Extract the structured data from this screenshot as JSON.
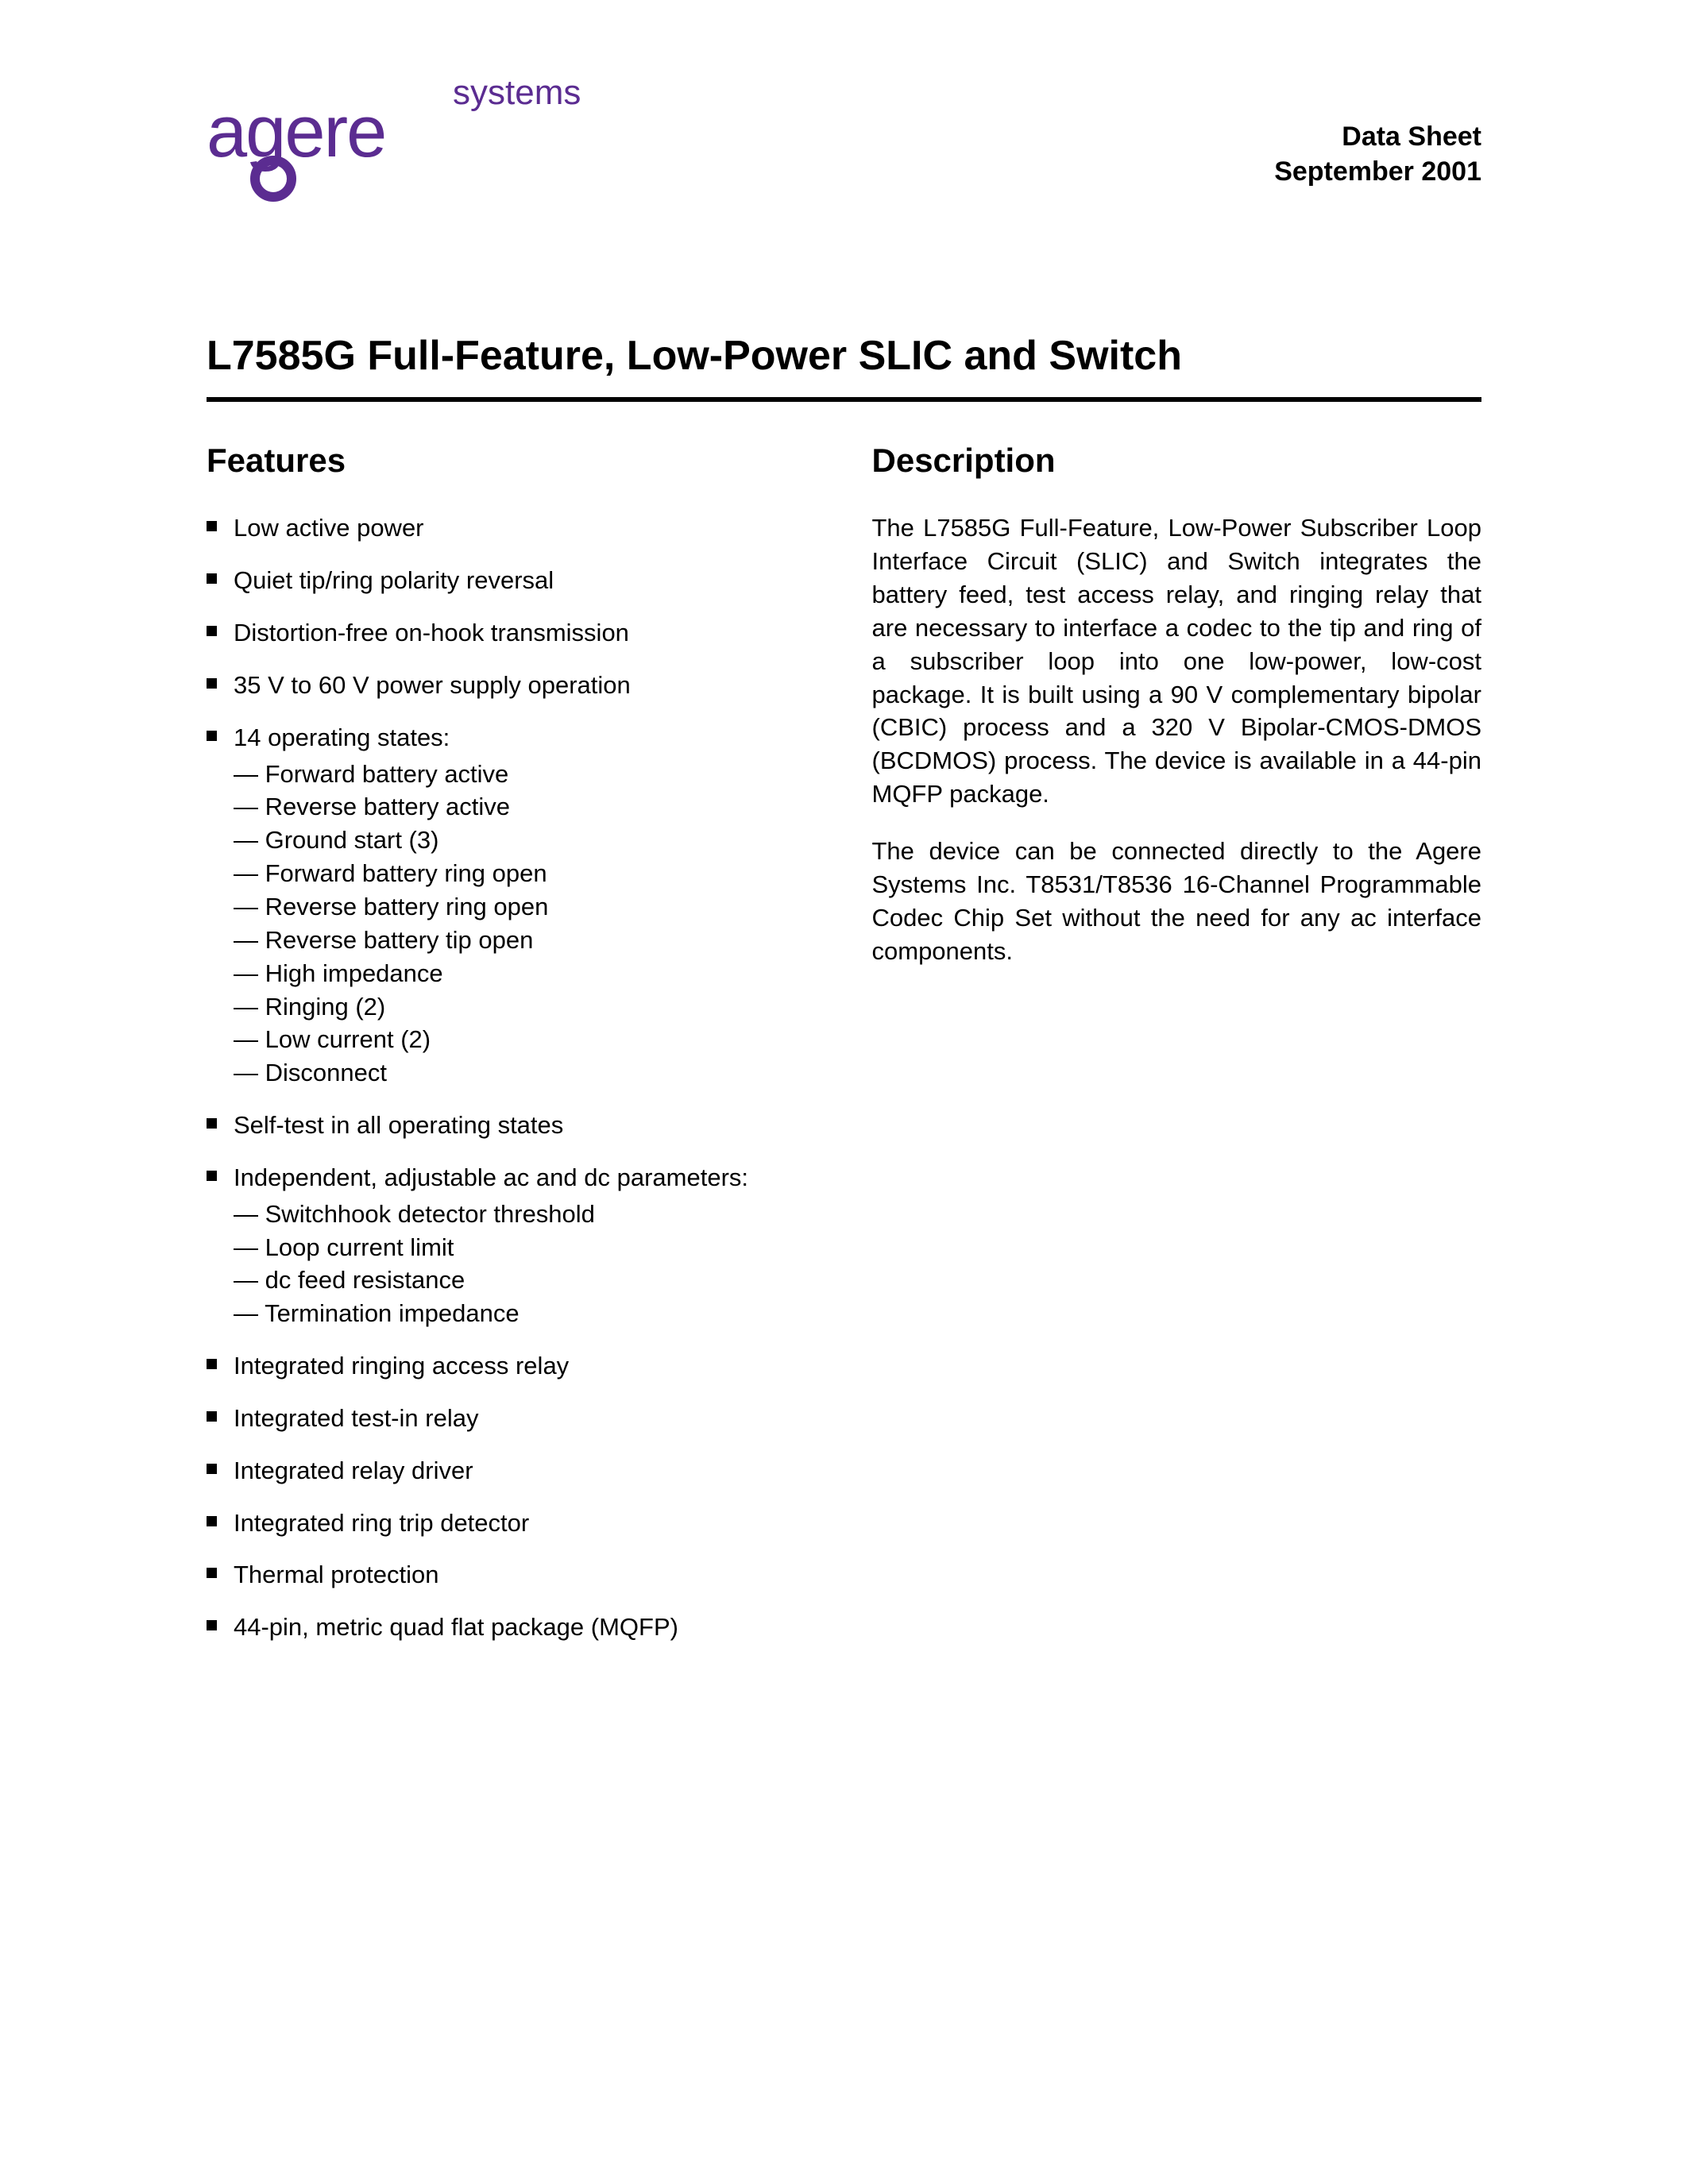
{
  "logo": {
    "word": "agere",
    "superscript": "systems"
  },
  "header": {
    "doc_type": "Data Sheet",
    "date": "September 2001"
  },
  "title": "L7585G Full-Feature, Low-Power SLIC and Switch",
  "features": {
    "heading": "Features",
    "items": [
      {
        "text": "Low active power"
      },
      {
        "text": "Quiet tip/ring polarity reversal"
      },
      {
        "text": "Distortion-free on-hook transmission"
      },
      {
        "text": "35 V to 60 V power supply operation"
      },
      {
        "text": "14 operating states:",
        "sub": [
          "Forward battery active",
          "Reverse battery active",
          "Ground start (3)",
          "Forward battery ring open",
          "Reverse battery ring open",
          "Reverse battery tip open",
          "High impedance",
          "Ringing (2)",
          "Low current (2)",
          "Disconnect"
        ]
      },
      {
        "text": "Self-test in all operating states"
      },
      {
        "text": "Independent, adjustable ac and dc parameters:",
        "sub": [
          "Switchhook detector threshold",
          "Loop current limit",
          "dc feed resistance",
          "Termination impedance"
        ]
      },
      {
        "text": "Integrated ringing access relay"
      },
      {
        "text": "Integrated test-in relay"
      },
      {
        "text": "Integrated relay driver"
      },
      {
        "text": "Integrated ring trip detector"
      },
      {
        "text": "Thermal protection"
      },
      {
        "text": "44-pin, metric quad flat package (MQFP)"
      }
    ]
  },
  "description": {
    "heading": "Description",
    "paragraphs": [
      "The L7585G Full-Feature, Low-Power Subscriber Loop Interface Circuit (SLIC) and Switch integrates the battery feed, test access relay, and ringing relay that are necessary to interface a codec to the tip and ring of a subscriber loop into one low-power, low-cost package. It is built using a 90 V complementary bipolar (CBIC) process and a 320 V Bipolar-CMOS-DMOS (BCDMOS) process. The device is available in a 44-pin MQFP package.",
      "The device can be connected directly to the Agere Systems Inc. T8531/T8536 16-Channel Programmable Codec Chip Set without the need for any ac interface components."
    ]
  }
}
